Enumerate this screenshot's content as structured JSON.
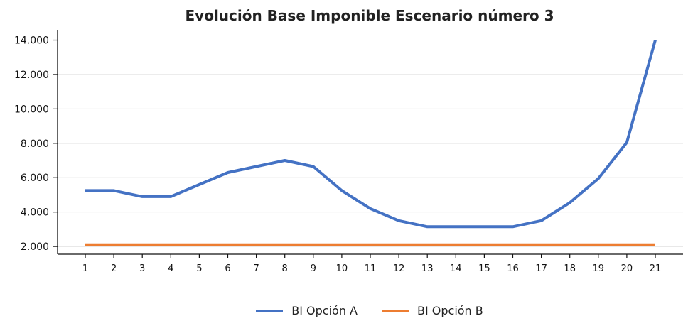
{
  "chart_data": {
    "type": "line",
    "title": "Evolución Base Imponible Escenario número 3",
    "xlabel": "",
    "ylabel": "",
    "categories": [
      "1",
      "2",
      "3",
      "4",
      "5",
      "6",
      "7",
      "8",
      "9",
      "10",
      "11",
      "12",
      "13",
      "14",
      "15",
      "16",
      "17",
      "18",
      "19",
      "20",
      "21"
    ],
    "ylim": [
      1550,
      14600
    ],
    "yticks": [
      2000,
      4000,
      6000,
      8000,
      10000,
      12000,
      14000
    ],
    "ytick_labels": [
      "2.000",
      "4.000",
      "6.000",
      "8.000",
      "10.000",
      "12.000",
      "14.000"
    ],
    "grid": "horizontal",
    "legend_position": "bottom-center",
    "series": [
      {
        "name": "BI Opción A",
        "color": "#4472c4",
        "values": [
          5250,
          5250,
          4900,
          4900,
          5600,
          6300,
          6650,
          7000,
          6650,
          5250,
          4200,
          3500,
          3150,
          3150,
          3150,
          3150,
          3500,
          4550,
          5950,
          8050,
          14000
        ]
      },
      {
        "name": "BI Opción B",
        "color": "#ed7d31",
        "values": [
          2100,
          2100,
          2100,
          2100,
          2100,
          2100,
          2100,
          2100,
          2100,
          2100,
          2100,
          2100,
          2100,
          2100,
          2100,
          2100,
          2100,
          2100,
          2100,
          2100,
          2100
        ]
      }
    ]
  }
}
